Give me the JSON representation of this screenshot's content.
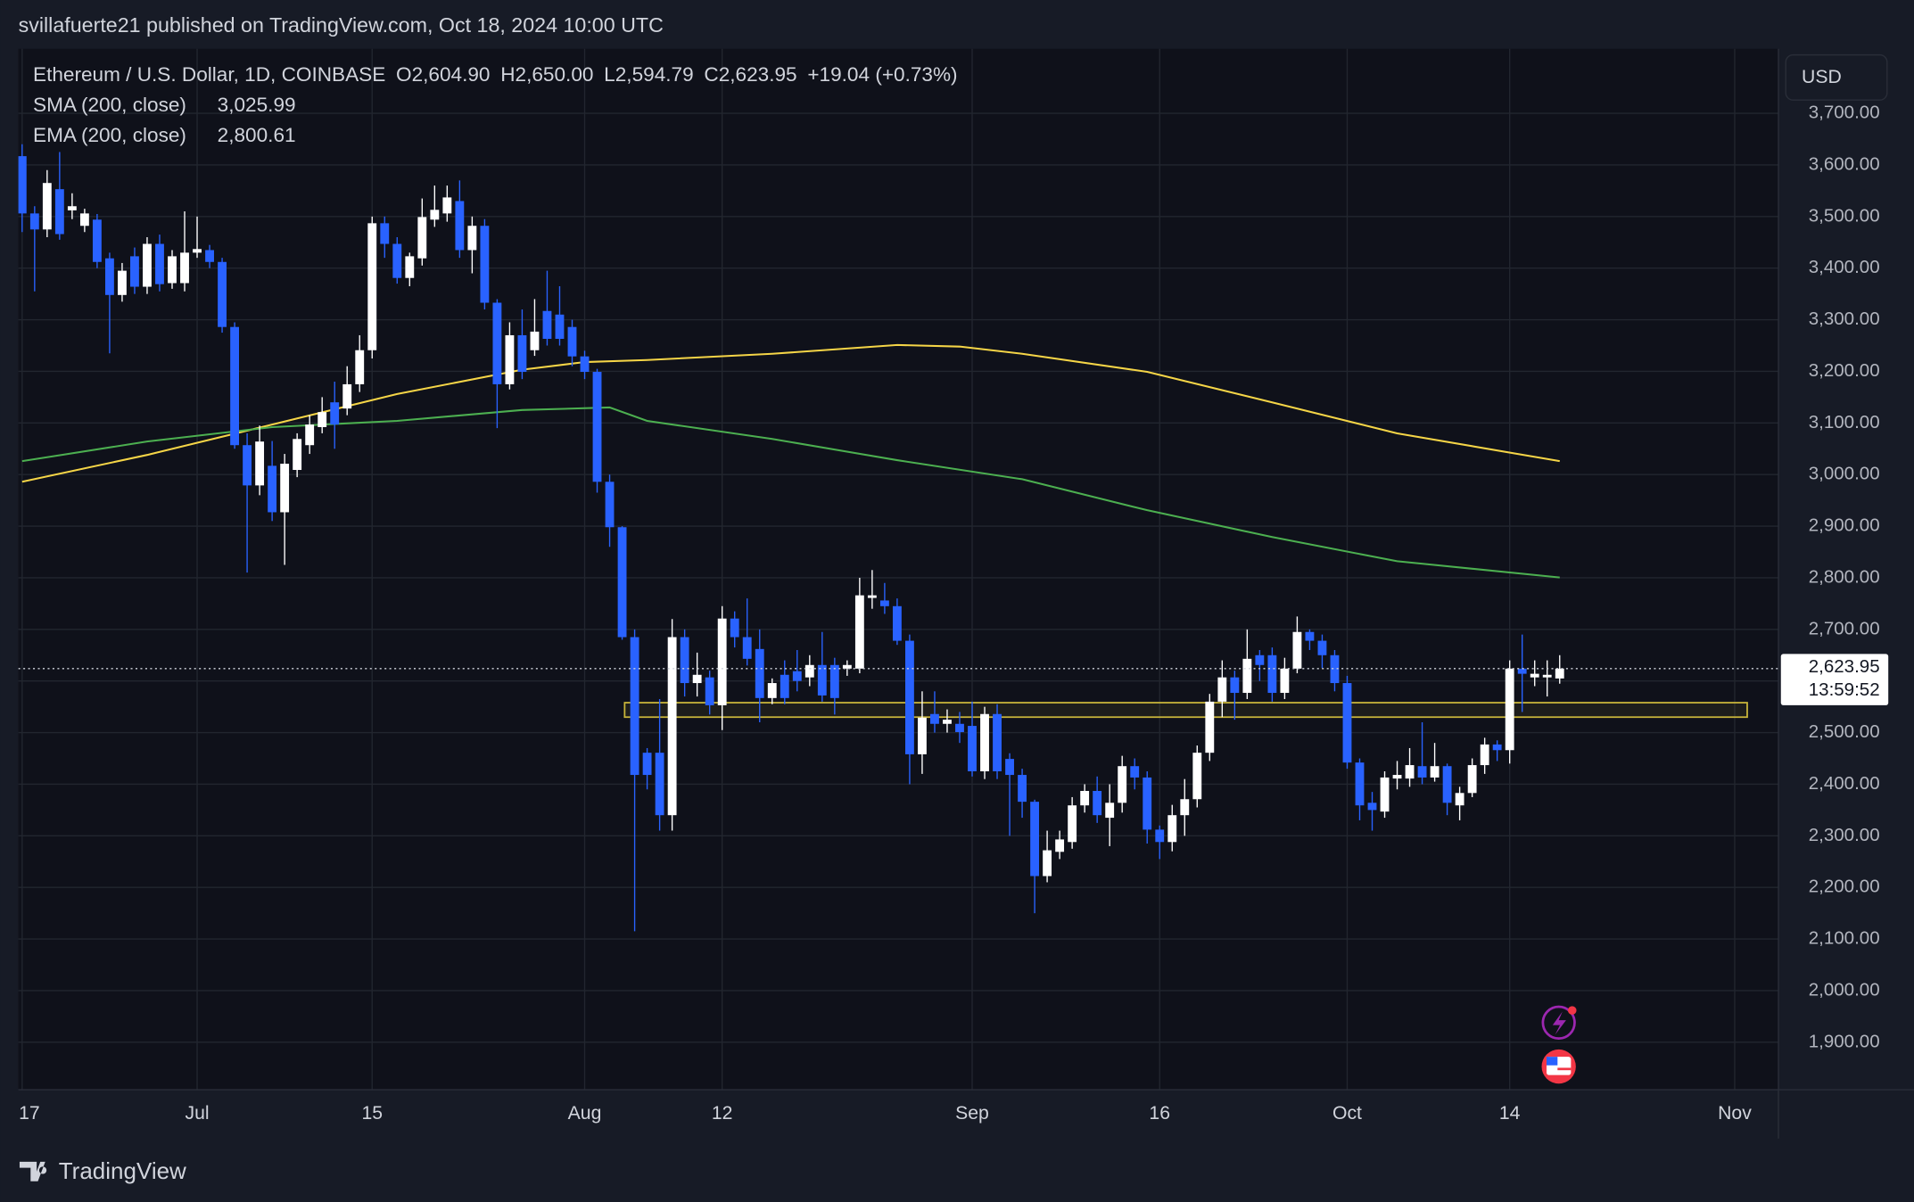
{
  "header": {
    "byline": "svillafuerte21 published on TradingView.com, Oct 18, 2024 10:00 UTC"
  },
  "footer": {
    "brand": "TradingView"
  },
  "chart_data": {
    "type": "candlestick",
    "title": "Ethereum / U.S. Dollar, 1D, COINBASE",
    "ohlc_legend": [
      {
        "key": "O",
        "label": "2,604.90"
      },
      {
        "key": "H",
        "label": "2,650.00"
      },
      {
        "key": "L",
        "label": "2,594.79"
      },
      {
        "key": "C",
        "label": "2,623.95"
      }
    ],
    "change": "+19.04 (+0.73%)",
    "currency": "USD",
    "up_color": "#ffffff",
    "down_color": "#2962ff",
    "open": [
      3617,
      3506,
      3475,
      3553,
      3512,
      3482,
      3494,
      3419,
      3348,
      3423,
      3364,
      3447,
      3371,
      3371,
      3430,
      3435,
      3412,
      3286,
      3057,
      2979,
      3017,
      2927,
      3009,
      3057,
      3092,
      3140,
      3128,
      3175,
      3241,
      3487,
      3447,
      3381,
      3419,
      3494,
      3506,
      3530,
      3435,
      3482,
      3333,
      3175,
      3270,
      3241,
      3317,
      3310,
      3286,
      3229,
      3199,
      2986,
      2898,
      2685,
      2461,
      2461,
      2340,
      2685,
      2596,
      2607,
      2553,
      2721,
      2685,
      2662,
      2567,
      2612,
      2619,
      2607,
      2631,
      2631,
      2624,
      2624,
      2761,
      2756,
      2745,
      2678,
      2458,
      2536,
      2517,
      2517,
      2513,
      2425,
      2536,
      2449,
      2418,
      2366,
      2222,
      2269,
      2288,
      2359,
      2387,
      2335,
      2364,
      2435,
      2413,
      2312,
      2288,
      2340,
      2371,
      2461,
      2560,
      2607,
      2577,
      2650,
      2650,
      2577,
      2624,
      2695,
      2678,
      2650,
      2596,
      2442,
      2364,
      2347,
      2411,
      2411,
      2435,
      2413,
      2435,
      2359,
      2383,
      2437,
      2477,
      2466,
      2624,
      2607,
      2607,
      2604.9
    ],
    "high": [
      3640,
      3520,
      3590,
      3625,
      3545,
      3515,
      3505,
      3430,
      3410,
      3440,
      3460,
      3465,
      3435,
      3510,
      3500,
      3445,
      3420,
      3295,
      3080,
      3095,
      3065,
      3040,
      3080,
      3115,
      3150,
      3180,
      3210,
      3270,
      3500,
      3500,
      3460,
      3430,
      3535,
      3560,
      3560,
      3570,
      3500,
      3495,
      3340,
      3295,
      3320,
      3340,
      3395,
      3365,
      3300,
      3240,
      3205,
      3000,
      2900,
      2700,
      2470,
      2565,
      2720,
      2700,
      2655,
      2620,
      2745,
      2735,
      2760,
      2700,
      2605,
      2640,
      2660,
      2650,
      2695,
      2645,
      2640,
      2800,
      2815,
      2790,
      2760,
      2690,
      2580,
      2580,
      2545,
      2540,
      2560,
      2550,
      2555,
      2460,
      2430,
      2370,
      2310,
      2310,
      2375,
      2400,
      2415,
      2400,
      2455,
      2450,
      2425,
      2320,
      2360,
      2410,
      2475,
      2575,
      2640,
      2620,
      2700,
      2660,
      2665,
      2645,
      2725,
      2700,
      2690,
      2660,
      2610,
      2450,
      2385,
      2425,
      2445,
      2470,
      2520,
      2480,
      2440,
      2395,
      2450,
      2490,
      2485,
      2640,
      2690,
      2640,
      2640,
      2650
    ],
    "low": [
      3470,
      3355,
      3460,
      3455,
      3495,
      3470,
      3400,
      3235,
      3335,
      3350,
      3350,
      3355,
      3360,
      3355,
      3420,
      3400,
      3275,
      3050,
      2810,
      2960,
      2910,
      2825,
      2995,
      3040,
      3080,
      3050,
      3115,
      3160,
      3225,
      3420,
      3370,
      3365,
      3405,
      3480,
      3490,
      3420,
      3390,
      3320,
      3090,
      3165,
      3185,
      3230,
      3250,
      3250,
      3210,
      3185,
      2965,
      2860,
      2680,
      2115,
      2390,
      2310,
      2310,
      2570,
      2570,
      2535,
      2505,
      2665,
      2630,
      2520,
      2555,
      2555,
      2580,
      2590,
      2560,
      2535,
      2610,
      2615,
      2740,
      2730,
      2670,
      2400,
      2420,
      2500,
      2500,
      2480,
      2415,
      2410,
      2410,
      2300,
      2335,
      2150,
      2210,
      2255,
      2275,
      2345,
      2325,
      2280,
      2345,
      2390,
      2285,
      2255,
      2270,
      2300,
      2355,
      2445,
      2530,
      2525,
      2565,
      2600,
      2560,
      2565,
      2615,
      2660,
      2625,
      2580,
      2430,
      2330,
      2310,
      2335,
      2390,
      2395,
      2400,
      2405,
      2340,
      2330,
      2375,
      2420,
      2445,
      2440,
      2540,
      2590,
      2570,
      2594.79
    ],
    "close": [
      3506,
      3475,
      3565,
      3466,
      3520,
      3506,
      3412,
      3348,
      3395,
      3364,
      3447,
      3369,
      3423,
      3430,
      3437,
      3412,
      3286,
      3057,
      2979,
      3064,
      2927,
      3021,
      3069,
      3097,
      3121,
      3097,
      3175,
      3241,
      3487,
      3447,
      3381,
      3423,
      3499,
      3513,
      3537,
      3435,
      3482,
      3333,
      3175,
      3270,
      3199,
      3277,
      3263,
      3263,
      3229,
      3199,
      2986,
      2898,
      2685,
      2418,
      2418,
      2340,
      2685,
      2596,
      2612,
      2553,
      2721,
      2685,
      2643,
      2567,
      2596,
      2567,
      2600,
      2631,
      2572,
      2567,
      2631,
      2766,
      2766,
      2745,
      2678,
      2458,
      2529,
      2517,
      2525,
      2501,
      2425,
      2536,
      2425,
      2418,
      2366,
      2222,
      2272,
      2293,
      2359,
      2387,
      2340,
      2364,
      2435,
      2413,
      2312,
      2288,
      2340,
      2371,
      2461,
      2560,
      2607,
      2577,
      2643,
      2631,
      2577,
      2624,
      2695,
      2678,
      2650,
      2596,
      2442,
      2359,
      2350,
      2413,
      2418,
      2437,
      2413,
      2435,
      2364,
      2383,
      2437,
      2477,
      2466,
      2624,
      2614,
      2614,
      2612,
      2623.95
    ],
    "lines": [
      {
        "name": "SMA (200, close)",
        "color": "#f5d547",
        "value_label": "3,025.99",
        "x": [
          0,
          10,
          20,
          30,
          40,
          45,
          50,
          60,
          70,
          75,
          80,
          90,
          100,
          110,
          123
        ],
        "values": [
          2986,
          3038,
          3097,
          3156,
          3203,
          3218,
          3222,
          3234,
          3251,
          3248,
          3234,
          3199,
          3140,
          3080,
          3025.99
        ]
      },
      {
        "name": "EMA (200, close)",
        "color": "#4caf50",
        "value_label": "2,800.61",
        "x": [
          0,
          10,
          20,
          30,
          40,
          47,
          50,
          60,
          70,
          80,
          90,
          100,
          110,
          123
        ],
        "values": [
          3026,
          3064,
          3092,
          3104,
          3125,
          3130,
          3104,
          3069,
          3028,
          2991,
          2931,
          2879,
          2832,
          2800.61
        ]
      }
    ],
    "zone": {
      "x": [
        48.2,
        138
      ],
      "y": [
        2530,
        2558
      ],
      "color": "#c9b53a"
    },
    "price_line": {
      "value": 2623.95,
      "label": "2,623.95",
      "countdown": "13:59:52"
    },
    "xlim": [
      -0.3,
      140.5
    ],
    "xticks": [
      {
        "value": 0,
        "label": "17"
      },
      {
        "value": 14,
        "label": "Jul"
      },
      {
        "value": 28,
        "label": "15"
      },
      {
        "value": 45,
        "label": "Aug"
      },
      {
        "value": 56,
        "label": "12"
      },
      {
        "value": 76,
        "label": "Sep"
      },
      {
        "value": 91,
        "label": "16"
      },
      {
        "value": 106,
        "label": "Oct"
      },
      {
        "value": 119,
        "label": "14"
      },
      {
        "value": 137,
        "label": "Nov"
      }
    ],
    "ylim": [
      1808,
      3825
    ],
    "yticks": [
      {
        "value": 1900,
        "label": "1,900.00"
      },
      {
        "value": 2000,
        "label": "2,000.00"
      },
      {
        "value": 2100,
        "label": "2,100.00"
      },
      {
        "value": 2200,
        "label": "2,200.00"
      },
      {
        "value": 2300,
        "label": "2,300.00"
      },
      {
        "value": 2400,
        "label": "2,400.00"
      },
      {
        "value": 2500,
        "label": "2,500.00"
      },
      {
        "value": 2600,
        "label": "2,600.00"
      },
      {
        "value": 2700,
        "label": "2,700.00"
      },
      {
        "value": 2800,
        "label": "2,800.00"
      },
      {
        "value": 2900,
        "label": "2,900.00"
      },
      {
        "value": 3000,
        "label": "3,000.00"
      },
      {
        "value": 3100,
        "label": "3,100.00"
      },
      {
        "value": 3200,
        "label": "3,200.00"
      },
      {
        "value": 3300,
        "label": "3,300.00"
      },
      {
        "value": 3400,
        "label": "3,400.00"
      },
      {
        "value": 3500,
        "label": "3,500.00"
      },
      {
        "value": 3600,
        "label": "3,600.00"
      },
      {
        "value": 3700,
        "label": "3,700.00"
      }
    ],
    "grid": true
  }
}
